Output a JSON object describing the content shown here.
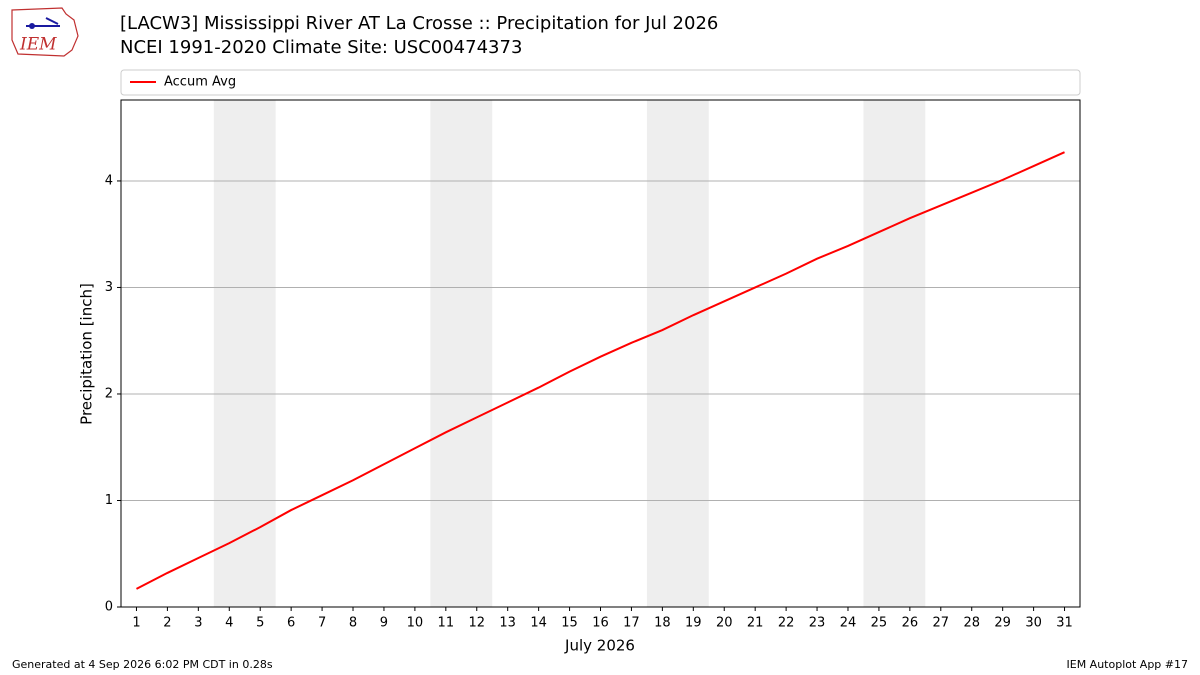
{
  "chart_data": {
    "type": "line",
    "title": "[LACW3] Mississippi River  AT La Crosse :: Precipitation for Jul 2026",
    "subtitle": "NCEI 1991-2020 Climate Site: USC00474373",
    "xlabel": "July 2026",
    "ylabel": "Precipitation [inch]",
    "x": [
      1,
      2,
      3,
      4,
      5,
      6,
      7,
      8,
      9,
      10,
      11,
      12,
      13,
      14,
      15,
      16,
      17,
      18,
      19,
      20,
      21,
      22,
      23,
      24,
      25,
      26,
      27,
      28,
      29,
      30,
      31
    ],
    "series": [
      {
        "name": "Accum Avg",
        "color": "#ff0000",
        "values": [
          0.17,
          0.32,
          0.46,
          0.6,
          0.75,
          0.91,
          1.05,
          1.19,
          1.34,
          1.49,
          1.64,
          1.78,
          1.92,
          2.06,
          2.21,
          2.35,
          2.48,
          2.6,
          2.74,
          2.87,
          3.0,
          3.13,
          3.27,
          3.39,
          3.52,
          3.65,
          3.77,
          3.89,
          4.01,
          4.14,
          4.27
        ]
      }
    ],
    "xlim": [
      0.5,
      31.5
    ],
    "xticks": [
      1,
      2,
      3,
      4,
      5,
      6,
      7,
      8,
      9,
      10,
      11,
      12,
      13,
      14,
      15,
      16,
      17,
      18,
      19,
      20,
      21,
      22,
      23,
      24,
      25,
      26,
      27,
      28,
      29,
      30,
      31
    ],
    "ylim": [
      0,
      4.76
    ],
    "yticks": [
      0,
      1,
      2,
      3,
      4
    ],
    "grid": true,
    "legend": "top",
    "weekend_spans": [
      [
        3.5,
        5.5
      ],
      [
        10.5,
        12.5
      ],
      [
        17.5,
        19.5
      ],
      [
        24.5,
        26.5
      ]
    ],
    "weekend_color": "#eeeeee"
  },
  "footer": {
    "left": "Generated at 4 Sep 2026 6:02 PM CDT in 0.28s",
    "right": "IEM Autoplot App #17"
  },
  "logo_text": "IEM"
}
